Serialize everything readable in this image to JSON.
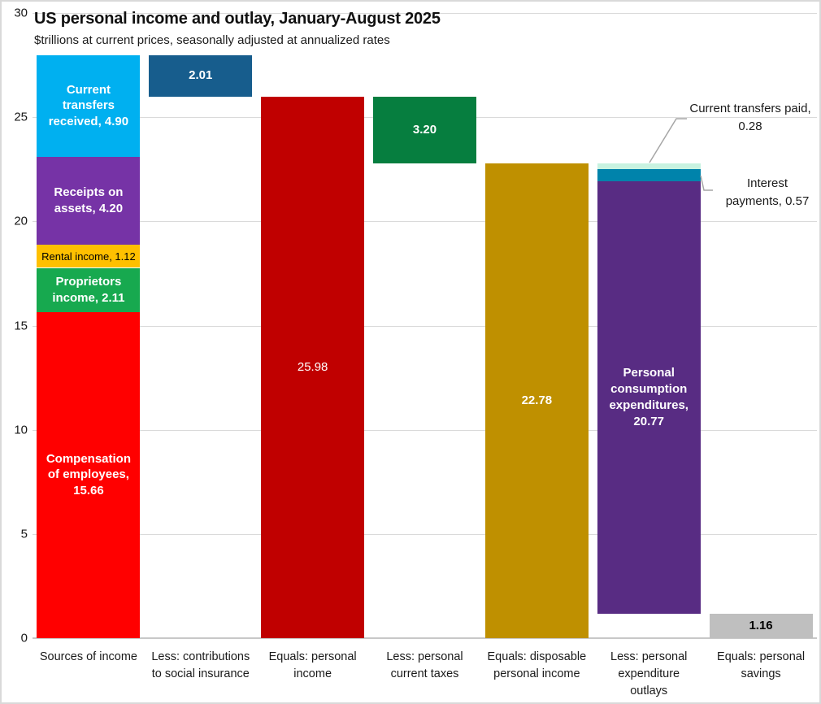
{
  "title": "US personal income and outlay, January-August 2025",
  "subtitle": "$trillions at current prices, seasonally adjusted at annualized rates",
  "style": {
    "gridline_color": "#DADADA",
    "axis_color": "#C8C8C8",
    "leader_color": "#A6A6A6",
    "frame_border_color": "#D9D9D9"
  },
  "chart_data": {
    "type": "bar",
    "subtype": "stacked-waterfall",
    "ylim": [
      0,
      30
    ],
    "yticks": [
      0,
      5,
      10,
      15,
      20,
      25,
      30
    ],
    "grid": true,
    "categories": [
      {
        "lines": [
          "Sources of income"
        ]
      },
      {
        "lines": [
          "Less: contributions",
          "to social insurance"
        ]
      },
      {
        "lines": [
          "Equals: personal",
          "income"
        ]
      },
      {
        "lines": [
          "Less: personal",
          "current taxes"
        ]
      },
      {
        "lines": [
          "Equals: disposable",
          "personal income"
        ]
      },
      {
        "lines": [
          "Less: personal",
          "expenditure",
          "outlays"
        ]
      },
      {
        "lines": [
          "Equals: personal",
          "savings"
        ]
      }
    ],
    "bars": [
      {
        "category": "Sources of income",
        "base": 0,
        "segments": [
          {
            "name": "compensation-of-employees",
            "value": 15.66,
            "label": "Compensation of employees, 15.66",
            "color": "#FF0000",
            "text_color": "#FFFFFF",
            "bold": true
          },
          {
            "name": "proprietors-income",
            "value": 2.11,
            "label": "Proprietors income, 2.11",
            "color": "#17A94F",
            "text_color": "#FFFFFF",
            "bold": true
          },
          {
            "name": "rental-income",
            "value": 1.12,
            "label": "Rental income, 1.12",
            "color": "#FFC000",
            "text_color": "#000000",
            "bold": false,
            "small": true
          },
          {
            "name": "receipts-on-assets",
            "value": 4.2,
            "label": "Receipts on assets, 4.20",
            "color": "#7633A6",
            "text_color": "#FFFFFF",
            "bold": true
          },
          {
            "name": "current-transfers-received",
            "value": 4.9,
            "label": "Current transfers received, 4.90",
            "color": "#00B0F0",
            "text_color": "#FFFFFF",
            "bold": true
          }
        ]
      },
      {
        "category": "Less: contributions to social insurance",
        "base": 25.98,
        "segments": [
          {
            "name": "contributions-to-social-insurance",
            "value": 2.01,
            "label": "2.01",
            "color": "#175D8D",
            "text_color": "#FFFFFF",
            "bold": true
          }
        ]
      },
      {
        "category": "Equals: personal income",
        "base": 0,
        "segments": [
          {
            "name": "personal-income",
            "value": 25.98,
            "label": "25.98",
            "color": "#C00000",
            "text_color": "#FFFFFF",
            "bold": false
          }
        ]
      },
      {
        "category": "Less: personal current taxes",
        "base": 22.78,
        "segments": [
          {
            "name": "personal-current-taxes",
            "value": 3.2,
            "label": "3.20",
            "color": "#067E3F",
            "text_color": "#FFFFFF",
            "bold": true
          }
        ]
      },
      {
        "category": "Equals: disposable personal income",
        "base": 0,
        "segments": [
          {
            "name": "disposable-personal-income",
            "value": 22.78,
            "label": "22.78",
            "color": "#BF9000",
            "text_color": "#FFFFFF",
            "bold": true
          }
        ]
      },
      {
        "category": "Less: personal expenditure outlays",
        "base": 1.16,
        "segments": [
          {
            "name": "personal-consumption-expenditures",
            "value": 20.77,
            "label": "Personal consumption expenditures, 20.77",
            "color": "#582C83",
            "text_color": "#FFFFFF",
            "bold": true
          },
          {
            "name": "interest-payments",
            "value": 0.57,
            "label": "",
            "color": "#0083AB",
            "text_color": "#FFFFFF",
            "bold": false
          },
          {
            "name": "current-transfers-paid",
            "value": 0.28,
            "label": "",
            "color": "#C8F2E0",
            "text_color": "#000000",
            "bold": false
          }
        ]
      },
      {
        "category": "Equals: personal savings",
        "base": 0,
        "segments": [
          {
            "name": "personal-savings",
            "value": 1.16,
            "label": "1.16",
            "color": "#BFBFBF",
            "text_color": "#000000",
            "bold": true
          }
        ]
      }
    ],
    "annotations": [
      {
        "name": "current-transfers-paid",
        "lines": [
          "Current transfers paid,",
          "0.28"
        ]
      },
      {
        "name": "interest-payments",
        "lines": [
          "Interest",
          "payments, 0.57"
        ]
      }
    ]
  }
}
